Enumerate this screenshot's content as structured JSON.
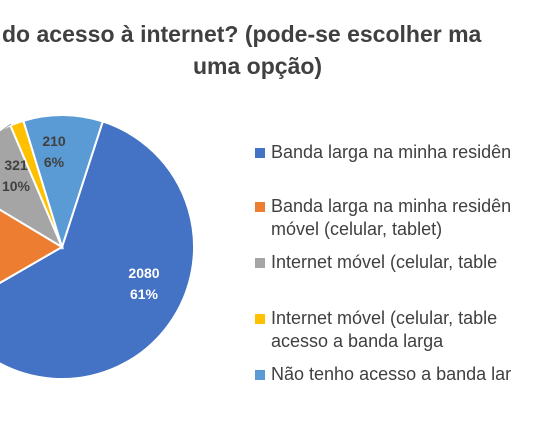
{
  "chart_data": {
    "type": "pie",
    "title_line1": "do acesso à internet? (pode-se escolher ma",
    "title_line2": "uma opção)",
    "slices": [
      {
        "label_lines": [
          "Banda larga na minha residên"
        ],
        "value": 2080,
        "percent": "61%",
        "color": "#4472c4"
      },
      {
        "label_lines": [
          "Banda larga na minha residên",
          "móvel (celular, tablet)"
        ],
        "value": null,
        "percent": null,
        "color": "#ed7d31"
      },
      {
        "label_lines": [
          "Internet móvel (celular, table"
        ],
        "value": 321,
        "percent": "10%",
        "color": "#a5a5a5"
      },
      {
        "label_lines": [
          "Internet móvel (celular, table",
          "acesso a banda larga"
        ],
        "value": null,
        "percent": null,
        "color": "#ffc000"
      },
      {
        "label_lines": [
          "Não tenho acesso a banda lar"
        ],
        "value": 210,
        "percent": "6%",
        "color": "#5b9bd5"
      }
    ],
    "data_labels": [
      {
        "value_text": "2080",
        "percent_text": "61%"
      },
      {
        "value_text": "321",
        "percent_text": "10%"
      },
      {
        "value_text": "210",
        "percent_text": "6%"
      }
    ],
    "legend_position": "right"
  }
}
